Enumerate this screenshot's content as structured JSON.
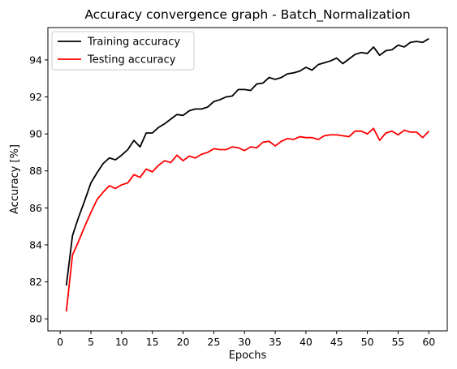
{
  "chart_data": {
    "type": "line",
    "title": "Accuracy convergence graph - Batch_Normalization",
    "xlabel": "Epochs",
    "ylabel": "Accuracy [%]",
    "xlim": [
      0,
      60
    ],
    "ylim": [
      80,
      95.5
    ],
    "xticks": [
      0,
      5,
      10,
      15,
      20,
      25,
      30,
      35,
      40,
      45,
      50,
      55,
      60
    ],
    "yticks": [
      80,
      82,
      84,
      86,
      88,
      90,
      92,
      94
    ],
    "grid": false,
    "legend_position": "top-left",
    "x": [
      1,
      2,
      3,
      4,
      5,
      6,
      7,
      8,
      9,
      10,
      11,
      12,
      13,
      14,
      15,
      16,
      17,
      18,
      19,
      20,
      21,
      22,
      23,
      24,
      25,
      26,
      27,
      28,
      29,
      30,
      31,
      32,
      33,
      34,
      35,
      36,
      37,
      38,
      39,
      40,
      41,
      42,
      43,
      44,
      45,
      46,
      47,
      48,
      49,
      50,
      51,
      52,
      53,
      54,
      55,
      56,
      57,
      58,
      59,
      60
    ],
    "series": [
      {
        "name": "Training accuracy",
        "color": "#000000",
        "values": [
          81.8,
          84.5,
          85.5,
          86.4,
          87.35,
          87.9,
          88.4,
          88.7,
          88.6,
          88.85,
          89.15,
          89.65,
          89.3,
          90.05,
          90.05,
          90.35,
          90.55,
          90.8,
          91.05,
          91.0,
          91.25,
          91.35,
          91.35,
          91.45,
          91.75,
          91.85,
          92.0,
          92.05,
          92.4,
          92.4,
          92.35,
          92.7,
          92.75,
          93.05,
          92.95,
          93.05,
          93.25,
          93.3,
          93.4,
          93.6,
          93.45,
          93.75,
          93.85,
          93.95,
          94.1,
          93.8,
          94.05,
          94.3,
          94.4,
          94.35,
          94.7,
          94.25,
          94.5,
          94.55,
          94.8,
          94.7,
          94.95,
          95.0,
          94.95,
          95.15
        ]
      },
      {
        "name": "Testing accuracy",
        "color": "#ff0000",
        "values": [
          80.4,
          83.45,
          84.2,
          85.0,
          85.75,
          86.45,
          86.85,
          87.2,
          87.05,
          87.25,
          87.35,
          87.8,
          87.65,
          88.1,
          87.95,
          88.3,
          88.55,
          88.45,
          88.85,
          88.55,
          88.8,
          88.7,
          88.9,
          89.0,
          89.2,
          89.15,
          89.15,
          89.3,
          89.25,
          89.1,
          89.3,
          89.25,
          89.55,
          89.6,
          89.35,
          89.6,
          89.75,
          89.7,
          89.85,
          89.8,
          89.8,
          89.7,
          89.9,
          89.95,
          89.95,
          89.9,
          89.85,
          90.15,
          90.15,
          90.0,
          90.3,
          89.65,
          90.05,
          90.15,
          89.95,
          90.2,
          90.1,
          90.1,
          89.8,
          90.15
        ]
      }
    ]
  }
}
